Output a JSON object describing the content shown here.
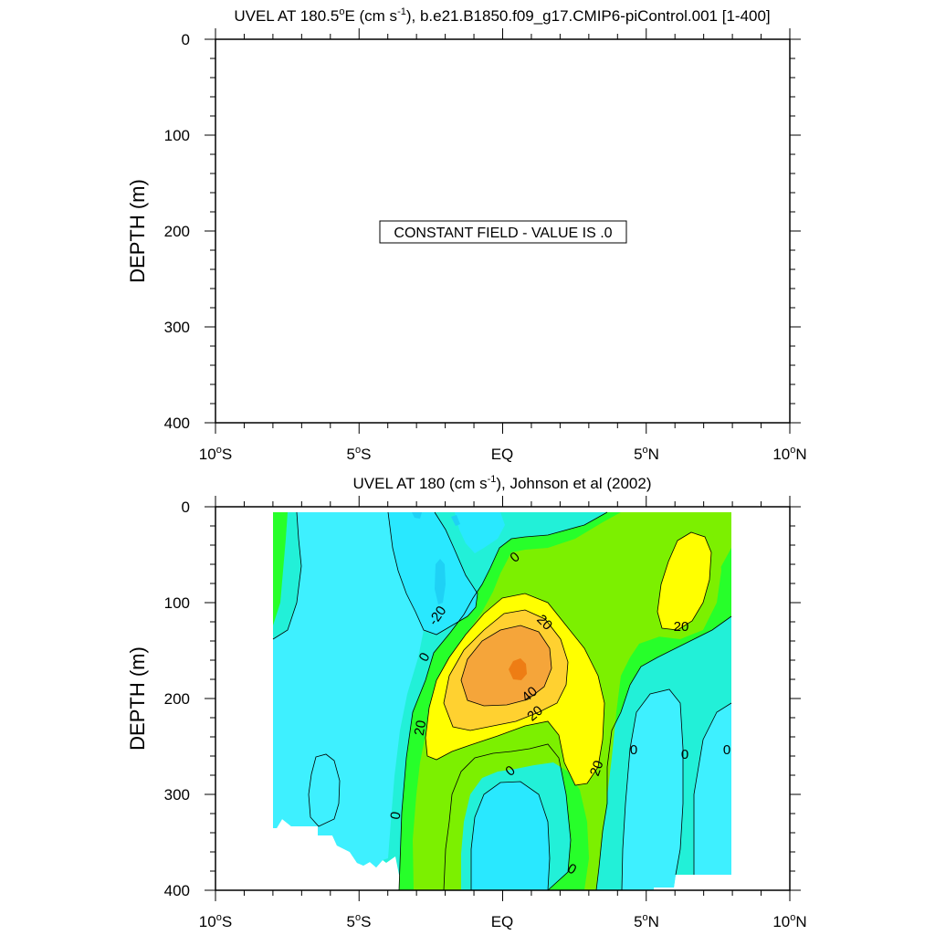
{
  "chart_data": [
    {
      "type": "heatmap",
      "title": {
        "main": "UVEL AT 180.5",
        "deg": "o",
        "after_deg": "E (cm s",
        "sup": "-1",
        "tail": "), b.e21.B1850.f09_g17.CMIP6-piControl.001 [1-400]"
      },
      "ylabel": "DEPTH (m)",
      "xlabel": "",
      "xlim": [
        -10,
        10
      ],
      "ylim": [
        400,
        0
      ],
      "x_tick_labels": [
        {
          "num": "10",
          "deg": "o",
          "hem": "S"
        },
        {
          "num": "5",
          "deg": "o",
          "hem": "S"
        },
        {
          "num": "EQ",
          "deg": "",
          "hem": ""
        },
        {
          "num": "5",
          "deg": "o",
          "hem": "N"
        },
        {
          "num": "10",
          "deg": "o",
          "hem": "N"
        }
      ],
      "y_tick_labels": [
        "0",
        "100",
        "200",
        "300",
        "400"
      ],
      "annotation": "CONSTANT FIELD - VALUE IS .0",
      "constant_value": 0
    },
    {
      "type": "heatmap",
      "title": {
        "main": "UVEL AT 180 (cm s",
        "sup": "-1",
        "tail": "), Johnson et al (2002)"
      },
      "ylabel": "DEPTH (m)",
      "xlabel": "",
      "xlim": [
        -10,
        10
      ],
      "ylim": [
        400,
        0
      ],
      "x_tick_labels": [
        {
          "num": "10",
          "deg": "o",
          "hem": "S"
        },
        {
          "num": "5",
          "deg": "o",
          "hem": "S"
        },
        {
          "num": "EQ",
          "deg": "",
          "hem": ""
        },
        {
          "num": "5",
          "deg": "o",
          "hem": "N"
        },
        {
          "num": "10",
          "deg": "o",
          "hem": "N"
        }
      ],
      "y_tick_labels": [
        "0",
        "100",
        "200",
        "300",
        "400"
      ],
      "contour_labels": [
        "-20",
        "0",
        "20",
        "0",
        "20",
        "40",
        "20",
        "20",
        "20",
        "0",
        "20",
        "0",
        "0",
        "0",
        "0",
        "0",
        "0"
      ],
      "colors": {
        "lt_m40": "#29e8ff",
        "m40_m20": "#1fd1f5",
        "m20_m10": "#3ef0ff",
        "m10_0": "#22f0d8",
        "zero_10": "#27ff2a",
        "ten_20": "#7cf000",
        "twenty_30": "#ffff00",
        "thirty_40": "#ffd130",
        "forty_50": "#f5a53a",
        "gt_50": "#ee7d14"
      }
    }
  ]
}
